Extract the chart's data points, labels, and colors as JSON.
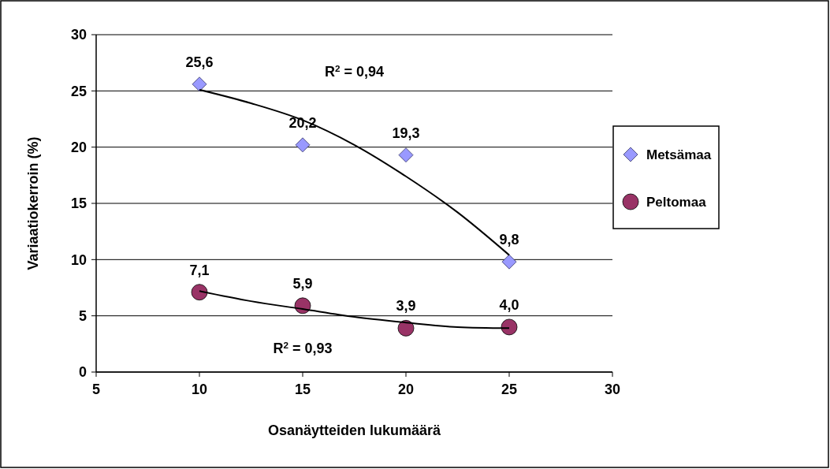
{
  "chart_data": {
    "type": "scatter",
    "xlabel": "Osanäytteiden lukumäärä",
    "ylabel": "Variaatiokerroin (%)",
    "xlim": [
      5,
      30
    ],
    "xticks": [
      5,
      10,
      15,
      20,
      25,
      30
    ],
    "ylim": [
      0,
      30
    ],
    "yticks": [
      0,
      5,
      10,
      15,
      20,
      25,
      30
    ],
    "grid": "y",
    "legend": "right",
    "annotations": [
      "R$^{2}$ = 0,94",
      "R$^{2}$ = 0,93"
    ],
    "series": [
      {
        "name": "Metsämaa",
        "type": "scatter",
        "marker": "diamond",
        "color": "#9999ff",
        "x": [
          10,
          15,
          20,
          25
        ],
        "values": [
          25.6,
          20.2,
          19.3,
          9.8
        ],
        "value_labels": [
          "25,6",
          "20,2",
          "19,3",
          "9,8"
        ]
      },
      {
        "name": "Peltomaa",
        "type": "scatter",
        "marker": "circle",
        "color": "#993366",
        "x": [
          10,
          15,
          20,
          25
        ],
        "values": [
          7.1,
          5.9,
          3.9,
          4.0
        ],
        "value_labels": [
          "7,1",
          "5,9",
          "3,9",
          "4,0"
        ]
      },
      {
        "type": "line",
        "marker": "none",
        "color": "#000000",
        "x": [
          10,
          12.5,
          15,
          17.5,
          20,
          22.5,
          25
        ],
        "values": [
          25.1,
          23.9,
          22.4,
          20.2,
          17.4,
          14.2,
          10.4
        ]
      },
      {
        "type": "line",
        "marker": "none",
        "color": "#000000",
        "x": [
          10,
          12.5,
          15,
          17.5,
          20,
          22.5,
          25
        ],
        "values": [
          7.2,
          6.3,
          5.6,
          4.9,
          4.4,
          4.0,
          3.9
        ]
      }
    ]
  }
}
